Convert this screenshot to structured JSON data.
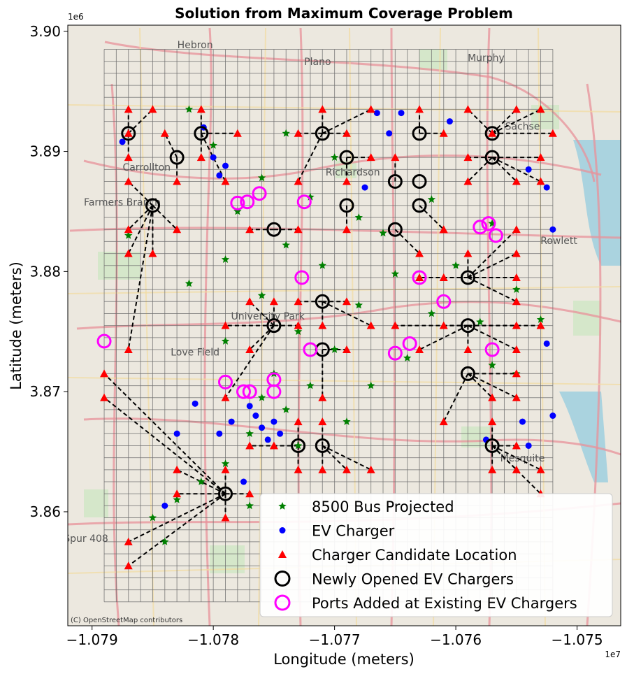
{
  "chart_data": {
    "type": "scatter",
    "title": "Solution from Maximum Coverage Problem",
    "xlabel": "Longitude (meters)",
    "ylabel": "Latitude (meters)",
    "x_offset_label": "1e7",
    "y_offset_label": "1e6",
    "xlim": [
      -10792000.0,
      -10746400.0
    ],
    "ylim": [
      3850510.0,
      3900510.0
    ],
    "xticks": [
      -10790000.0,
      -10780000.0,
      -10770000.0,
      -10760000.0,
      -10750000.0
    ],
    "xtick_labels": [
      "−1.079",
      "−1.078",
      "−1.077",
      "−1.076",
      "−1.075"
    ],
    "yticks": [
      3860000.0,
      3870000.0,
      3880000.0,
      3890000.0,
      3900000.0
    ],
    "ytick_labels": [
      "3.86",
      "3.87",
      "3.88",
      "3.89",
      "3.90"
    ],
    "grid": true,
    "legend_position": "lower-right",
    "basemap_attribution": "(C) OpenStreetMap contributors",
    "basemap_labels": [
      {
        "text": "Plano",
        "x": -10771400.0,
        "y": 3897200.0
      },
      {
        "text": "Murphy",
        "x": -10757500.0,
        "y": 3897500.0
      },
      {
        "text": "Hebron",
        "x": -10781500.0,
        "y": 3898600.0
      },
      {
        "text": "Carrollton",
        "x": -10785500.0,
        "y": 3888400.0
      },
      {
        "text": "Farmers Branch",
        "x": -10787500.0,
        "y": 3885500.0
      },
      {
        "text": "Richardson",
        "x": -10768500.0,
        "y": 3888000.0
      },
      {
        "text": "Sachse",
        "x": -10754500.0,
        "y": 3891800.0
      },
      {
        "text": "Rowlett",
        "x": -10751500.0,
        "y": 3882300.0
      },
      {
        "text": "University Park",
        "x": -10775500.0,
        "y": 3876000.0
      },
      {
        "text": "Love Field",
        "x": -10781500.0,
        "y": 3873000.0
      },
      {
        "text": "Mesquite",
        "x": -10754500.0,
        "y": 3864200.0
      },
      {
        "text": "Spur 408",
        "x": -10790500.0,
        "y": 3857500.0
      }
    ],
    "series": [
      {
        "name": "8500 Bus Projected",
        "color": "#008000",
        "marker": "star",
        "points": [
          [
            -10774000.0,
            3891500.0
          ],
          [
            -10770000.0,
            3889500.0
          ],
          [
            -10776000.0,
            3887800.0
          ],
          [
            -10772000.0,
            3886200.0
          ],
          [
            -10778000.0,
            3885000.0
          ],
          [
            -10768000.0,
            3884500.0
          ],
          [
            -10766000.0,
            3883200.0
          ],
          [
            -10774000.0,
            3882200.0
          ],
          [
            -10779000.0,
            3881000.0
          ],
          [
            -10771000.0,
            3880500.0
          ],
          [
            -10765000.0,
            3879800.0
          ],
          [
            -10782000.0,
            3879000.0
          ],
          [
            -10776000.0,
            3878000.0
          ],
          [
            -10768000.0,
            3877200.0
          ],
          [
            -10762000.0,
            3876500.0
          ],
          [
            -10758000.0,
            3875800.0
          ],
          [
            -10773000.0,
            3875000.0
          ],
          [
            -10779000.0,
            3874200.0
          ],
          [
            -10770000.0,
            3873500.0
          ],
          [
            -10764000.0,
            3872800.0
          ],
          [
            -10757000.0,
            3872200.0
          ],
          [
            -10775000.0,
            3871500.0
          ],
          [
            -10772000.0,
            3870500.0
          ],
          [
            -10776000.0,
            3869500.0
          ],
          [
            -10774000.0,
            3868500.0
          ],
          [
            -10769000.0,
            3867500.0
          ],
          [
            -10777000.0,
            3866500.0
          ],
          [
            -10773000.0,
            3865500.0
          ],
          [
            -10779000.0,
            3864000.0
          ],
          [
            -10781000.0,
            3862500.0
          ],
          [
            -10783000.0,
            3861000.0
          ],
          [
            -10785000.0,
            3859500.0
          ],
          [
            -10784000.0,
            3857500.0
          ],
          [
            -10777000.0,
            3860500.0
          ],
          [
            -10760000.0,
            3880500.0
          ],
          [
            -10755000.0,
            3878500.0
          ],
          [
            -10753000.0,
            3876000.0
          ],
          [
            -10757000.0,
            3884000.0
          ],
          [
            -10762000.0,
            3886000.0
          ],
          [
            -10787000.0,
            3883000.0
          ],
          [
            -10782000.0,
            3893500.0
          ],
          [
            -10780000.0,
            3890500.0
          ],
          [
            -10767000.0,
            3870500.0
          ],
          [
            -10755000.0,
            3871500.0
          ]
        ]
      },
      {
        "name": "EV Charger",
        "color": "#0000ff",
        "marker": "circle",
        "points": [
          [
            -10780800.0,
            3892000.0
          ],
          [
            -10780000.0,
            3889500.0
          ],
          [
            -10779500.0,
            3888000.0
          ],
          [
            -10779000.0,
            3888800.0
          ],
          [
            -10766500.0,
            3893200.0
          ],
          [
            -10765500.0,
            3891500.0
          ],
          [
            -10764500.0,
            3893200.0
          ],
          [
            -10760500.0,
            3892500.0
          ],
          [
            -10754000.0,
            3888500.0
          ],
          [
            -10752500.0,
            3887000.0
          ],
          [
            -10752000.0,
            3883500.0
          ],
          [
            -10767500.0,
            3887000.0
          ],
          [
            -10787500.0,
            3890800.0
          ],
          [
            -10752500.0,
            3874000.0
          ],
          [
            -10752000.0,
            3868000.0
          ],
          [
            -10754500.0,
            3867500.0
          ],
          [
            -10754000.0,
            3865500.0
          ],
          [
            -10757500.0,
            3866000.0
          ],
          [
            -10779500.0,
            3866500.0
          ],
          [
            -10778500.0,
            3867500.0
          ],
          [
            -10776500.0,
            3868000.0
          ],
          [
            -10776000.0,
            3867000.0
          ],
          [
            -10775500.0,
            3866000.0
          ],
          [
            -10775000.0,
            3867500.0
          ],
          [
            -10777000.0,
            3868800.0
          ],
          [
            -10774500.0,
            3866500.0
          ],
          [
            -10781500.0,
            3869000.0
          ],
          [
            -10783000.0,
            3866500.0
          ],
          [
            -10784000.0,
            3860500.0
          ],
          [
            -10777500.0,
            3862500.0
          ]
        ]
      },
      {
        "name": "Charger Candidate Location",
        "color": "#ff0000",
        "marker": "triangle",
        "points": [
          [
            -10787000.0,
            3893500.0
          ],
          [
            -10785000.0,
            3893500.0
          ],
          [
            -10781000.0,
            3893500.0
          ],
          [
            -10771000.0,
            3893500.0
          ],
          [
            -10767000.0,
            3893500.0
          ],
          [
            -10763000.0,
            3893500.0
          ],
          [
            -10759000.0,
            3893500.0
          ],
          [
            -10755000.0,
            3893500.0
          ],
          [
            -10753000.0,
            3893500.0
          ],
          [
            -10787000.0,
            3891500.0
          ],
          [
            -10784000.0,
            3891500.0
          ],
          [
            -10778000.0,
            3891500.0
          ],
          [
            -10773000.0,
            3891500.0
          ],
          [
            -10769000.0,
            3891500.0
          ],
          [
            -10761000.0,
            3891500.0
          ],
          [
            -10757000.0,
            3891500.0
          ],
          [
            -10752000.0,
            3891500.0
          ],
          [
            -10787000.0,
            3889500.0
          ],
          [
            -10781000.0,
            3889500.0
          ],
          [
            -10767000.0,
            3889500.0
          ],
          [
            -10765000.0,
            3889500.0
          ],
          [
            -10759000.0,
            3889500.0
          ],
          [
            -10753000.0,
            3889500.0
          ],
          [
            -10787000.0,
            3887500.0
          ],
          [
            -10783000.0,
            3887500.0
          ],
          [
            -10779000.0,
            3887500.0
          ],
          [
            -10773000.0,
            3887500.0
          ],
          [
            -10769000.0,
            3887500.0
          ],
          [
            -10759000.0,
            3887500.0
          ],
          [
            -10755000.0,
            3887500.0
          ],
          [
            -10753000.0,
            3887500.0
          ],
          [
            -10787000.0,
            3883500.0
          ],
          [
            -10783000.0,
            3883500.0
          ],
          [
            -10777000.0,
            3883500.0
          ],
          [
            -10773000.0,
            3883500.0
          ],
          [
            -10769000.0,
            3883500.0
          ],
          [
            -10761000.0,
            3883500.0
          ],
          [
            -10755000.0,
            3883500.0
          ],
          [
            -10787000.0,
            3881500.0
          ],
          [
            -10785000.0,
            3881500.0
          ],
          [
            -10763000.0,
            3881500.0
          ],
          [
            -10759000.0,
            3881500.0
          ],
          [
            -10755000.0,
            3881500.0
          ],
          [
            -10763000.0,
            3879500.0
          ],
          [
            -10761000.0,
            3879500.0
          ],
          [
            -10755000.0,
            3879500.0
          ],
          [
            -10777000.0,
            3877500.0
          ],
          [
            -10775000.0,
            3877500.0
          ],
          [
            -10773000.0,
            3877500.0
          ],
          [
            -10769000.0,
            3877500.0
          ],
          [
            -10755000.0,
            3877500.0
          ],
          [
            -10779000.0,
            3875500.0
          ],
          [
            -10773000.0,
            3875500.0
          ],
          [
            -10771000.0,
            3875500.0
          ],
          [
            -10767000.0,
            3875500.0
          ],
          [
            -10765000.0,
            3875500.0
          ],
          [
            -10761000.0,
            3875500.0
          ],
          [
            -10755000.0,
            3875500.0
          ],
          [
            -10753000.0,
            3875500.0
          ],
          [
            -10787000.0,
            3873500.0
          ],
          [
            -10777000.0,
            3873500.0
          ],
          [
            -10769000.0,
            3873500.0
          ],
          [
            -10763000.0,
            3873500.0
          ],
          [
            -10759000.0,
            3873500.0
          ],
          [
            -10755000.0,
            3873500.0
          ],
          [
            -10789000.0,
            3871500.0
          ],
          [
            -10755000.0,
            3871500.0
          ],
          [
            -10789000.0,
            3869500.0
          ],
          [
            -10779000.0,
            3869500.0
          ],
          [
            -10771000.0,
            3869500.0
          ],
          [
            -10757000.0,
            3869500.0
          ],
          [
            -10755000.0,
            3869500.0
          ],
          [
            -10773000.0,
            3867500.0
          ],
          [
            -10771000.0,
            3867500.0
          ],
          [
            -10761000.0,
            3867500.0
          ],
          [
            -10757000.0,
            3867500.0
          ],
          [
            -10777000.0,
            3865500.0
          ],
          [
            -10775000.0,
            3865500.0
          ],
          [
            -10755000.0,
            3865500.0
          ],
          [
            -10783000.0,
            3863500.0
          ],
          [
            -10779000.0,
            3863500.0
          ],
          [
            -10773000.0,
            3863500.0
          ],
          [
            -10771000.0,
            3863500.0
          ],
          [
            -10769000.0,
            3863500.0
          ],
          [
            -10767000.0,
            3863500.0
          ],
          [
            -10757000.0,
            3863500.0
          ],
          [
            -10755000.0,
            3863500.0
          ],
          [
            -10753000.0,
            3863500.0
          ],
          [
            -10783000.0,
            3861500.0
          ],
          [
            -10777000.0,
            3861500.0
          ],
          [
            -10753000.0,
            3861500.0
          ],
          [
            -10779000.0,
            3859500.0
          ],
          [
            -10787000.0,
            3857500.0
          ],
          [
            -10787000.0,
            3855500.0
          ]
        ]
      },
      {
        "name": "Newly Opened EV Chargers",
        "color": "#000000",
        "marker": "ring",
        "points": [
          [
            -10787000.0,
            3891500.0
          ],
          [
            -10781000.0,
            3891500.0
          ],
          [
            -10771000.0,
            3891500.0
          ],
          [
            -10763000.0,
            3891500.0
          ],
          [
            -10757000.0,
            3891500.0
          ],
          [
            -10783000.0,
            3889500.0
          ],
          [
            -10769000.0,
            3889500.0
          ],
          [
            -10757000.0,
            3889500.0
          ],
          [
            -10765000.0,
            3887500.0
          ],
          [
            -10763000.0,
            3887500.0
          ],
          [
            -10785000.0,
            3885500.0
          ],
          [
            -10769000.0,
            3885500.0
          ],
          [
            -10763000.0,
            3885500.0
          ],
          [
            -10775000.0,
            3883500.0
          ],
          [
            -10765000.0,
            3883500.0
          ],
          [
            -10759000.0,
            3879500.0
          ],
          [
            -10771000.0,
            3877500.0
          ],
          [
            -10775000.0,
            3875500.0
          ],
          [
            -10771000.0,
            3873500.0
          ],
          [
            -10759000.0,
            3875500.0
          ],
          [
            -10759000.0,
            3871500.0
          ],
          [
            -10773000.0,
            3865500.0
          ],
          [
            -10771000.0,
            3865500.0
          ],
          [
            -10757000.0,
            3865500.0
          ],
          [
            -10779000.0,
            3861500.0
          ]
        ]
      },
      {
        "name": "Ports Added at Existing EV Chargers",
        "color": "#ff00ff",
        "marker": "ring",
        "points": [
          [
            -10778000.0,
            3885700.0
          ],
          [
            -10777200.0,
            3885800.0
          ],
          [
            -10776200.0,
            3886500.0
          ],
          [
            -10772500.0,
            3885800.0
          ],
          [
            -10772700.0,
            3879500.0
          ],
          [
            -10772000.0,
            3873500.0
          ],
          [
            -10765000.0,
            3873200.0
          ],
          [
            -10763800.0,
            3874000.0
          ],
          [
            -10763000.0,
            3879500.0
          ],
          [
            -10761000.0,
            3877500.0
          ],
          [
            -10758000.0,
            3883700.0
          ],
          [
            -10757300.0,
            3884000.0
          ],
          [
            -10756700.0,
            3883000.0
          ],
          [
            -10757000.0,
            3873500.0
          ],
          [
            -10789000.0,
            3874200.0
          ],
          [
            -10779000.0,
            3870800.0
          ],
          [
            -10777500.0,
            3870000.0
          ],
          [
            -10777000.0,
            3870000.0
          ],
          [
            -10775000.0,
            3870000.0
          ],
          [
            -10775000.0,
            3871000.0
          ]
        ]
      }
    ]
  }
}
